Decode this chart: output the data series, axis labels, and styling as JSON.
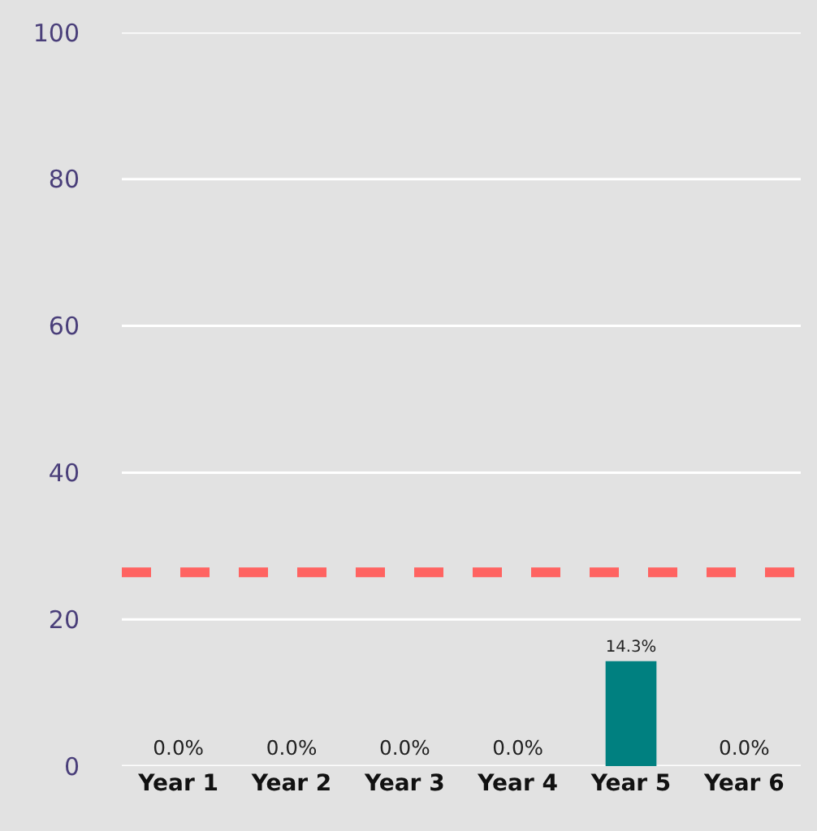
{
  "chart_data": {
    "type": "bar",
    "categories": [
      "Year 1",
      "Year 2",
      "Year 3",
      "Year 4",
      "Year 5",
      "Year 6"
    ],
    "values": [
      0,
      0,
      0,
      0,
      14.3,
      0
    ],
    "color": "#008080",
    "value_labels": [
      "0.0%",
      "0.0%",
      "0.0%",
      "0.0%",
      "14.3%",
      "0.0%"
    ],
    "ylim": [
      0,
      100
    ],
    "yticks": [
      0,
      20,
      40,
      60,
      80,
      100
    ],
    "grid": "y",
    "ref_lines": [
      {
        "axis": "y",
        "value": 26.4,
        "color": "#ff6361",
        "line_style": "dashed"
      }
    ]
  }
}
